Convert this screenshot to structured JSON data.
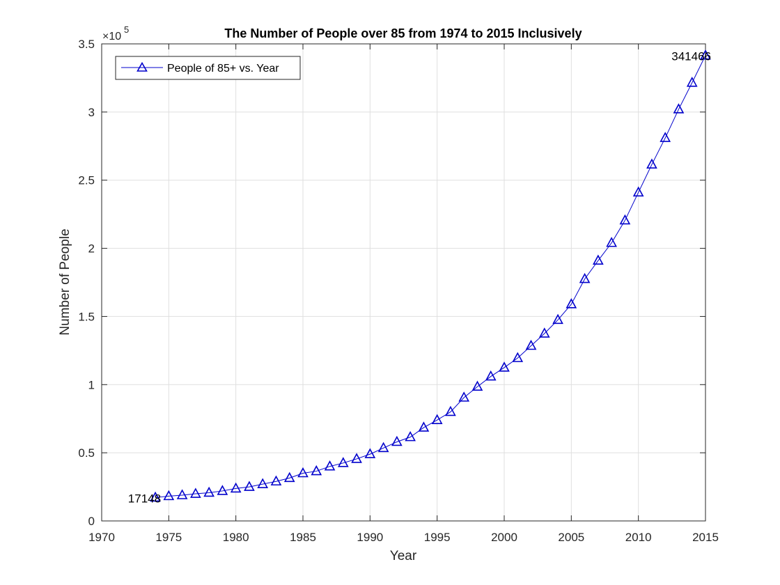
{
  "chart_data": {
    "type": "line",
    "title": "The Number of People over 85 from 1974 to 2015 Inclusively",
    "xlabel": "Year",
    "ylabel": "Number of People",
    "exponent_label": "×10",
    "exponent_power": "5",
    "xlim": [
      1970,
      2015
    ],
    "ylim": [
      0,
      350000
    ],
    "xticks": [
      1970,
      1975,
      1980,
      1985,
      1990,
      1995,
      2000,
      2005,
      2010,
      2015
    ],
    "xtick_labels": [
      "1970",
      "1975",
      "1980",
      "1985",
      "1990",
      "1995",
      "2000",
      "2005",
      "2010",
      "2015"
    ],
    "yticks": [
      0,
      50000,
      100000,
      150000,
      200000,
      250000,
      300000,
      350000
    ],
    "ytick_labels": [
      "0",
      "0.5",
      "1",
      "1.5",
      "2",
      "2.5",
      "3",
      "3.5"
    ],
    "grid": true,
    "legend_position": "top-left",
    "series": [
      {
        "name": "People of 85+ vs. Year",
        "color": "#0000cc",
        "marker": "triangle",
        "x": [
          1974,
          1975,
          1976,
          1977,
          1978,
          1979,
          1980,
          1981,
          1982,
          1983,
          1984,
          1985,
          1986,
          1987,
          1988,
          1989,
          1990,
          1991,
          1992,
          1993,
          1994,
          1995,
          1996,
          1997,
          1998,
          1999,
          2000,
          2001,
          2002,
          2003,
          2004,
          2005,
          2006,
          2007,
          2008,
          2009,
          2010,
          2011,
          2012,
          2013,
          2014,
          2015
        ],
        "y": [
          17148,
          18200,
          18900,
          19900,
          20700,
          22000,
          23800,
          25000,
          27000,
          29000,
          31500,
          35000,
          36500,
          40000,
          42500,
          45500,
          49000,
          53500,
          58000,
          61500,
          68500,
          74000,
          80000,
          90500,
          98500,
          106000,
          112500,
          119500,
          128500,
          137500,
          147500,
          159000,
          177500,
          191000,
          204000,
          220500,
          241000,
          261500,
          281000,
          302000,
          321500,
          341466
        ]
      }
    ],
    "annotations": [
      {
        "text": "17148",
        "x": 1974,
        "y": 17148,
        "align": "end"
      },
      {
        "text": "341466",
        "x": 2015,
        "y": 341466,
        "align": "end"
      }
    ]
  }
}
